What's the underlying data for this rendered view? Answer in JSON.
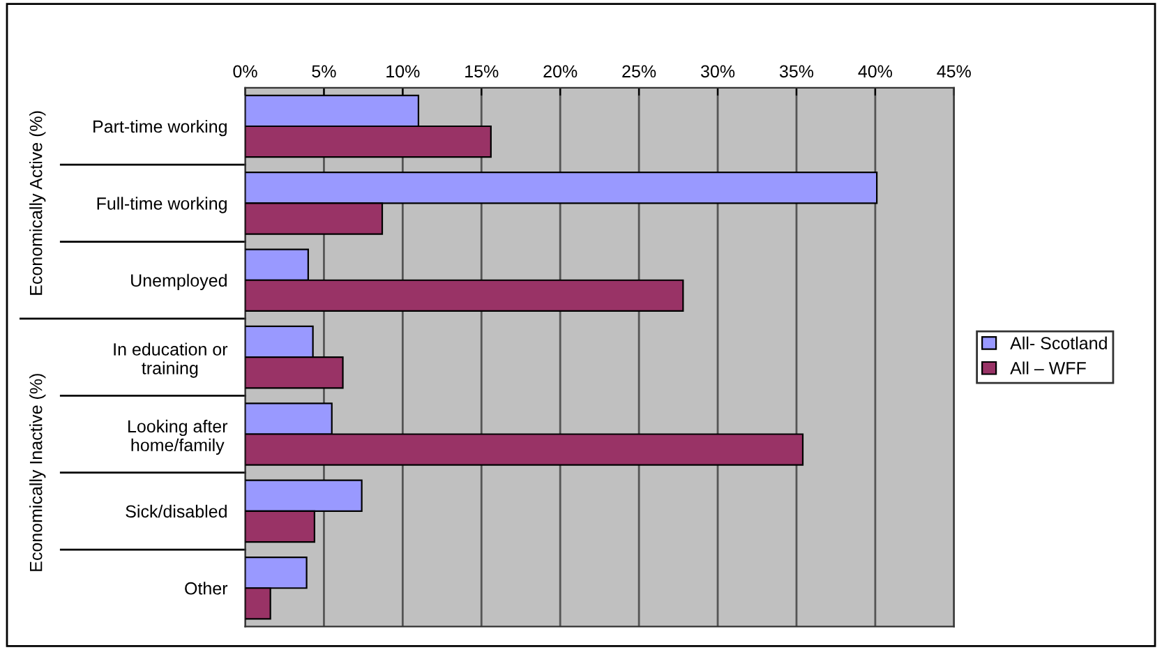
{
  "chart_data": {
    "type": "bar",
    "orientation": "horizontal",
    "categories": [
      "Part-time working",
      "Full-time working",
      "Unemployed",
      "In education or\ntraining",
      "Looking after\nhome/family",
      "Sick/disabled",
      "Other"
    ],
    "series": [
      {
        "name": "All- Scotland",
        "color": "#9999ff",
        "values": [
          11.0,
          40.1,
          4.0,
          4.3,
          5.5,
          7.4,
          3.9
        ]
      },
      {
        "name": "All – WFF",
        "color": "#993366",
        "values": [
          15.6,
          8.7,
          27.8,
          6.2,
          35.4,
          4.4,
          1.6
        ]
      }
    ],
    "xlim": [
      0,
      45
    ],
    "xticks": [
      {
        "value": 0,
        "label": "0%"
      },
      {
        "value": 5,
        "label": "5%"
      },
      {
        "value": 10,
        "label": "10%"
      },
      {
        "value": 15,
        "label": "15%"
      },
      {
        "value": 20,
        "label": "20%"
      },
      {
        "value": 25,
        "label": "25%"
      },
      {
        "value": 30,
        "label": "30%"
      },
      {
        "value": 35,
        "label": "35%"
      },
      {
        "value": 40,
        "label": "40%"
      },
      {
        "value": 45,
        "label": "45%"
      }
    ],
    "annotations": [
      "Economically Active (%)",
      "Economically Inactive (%)"
    ],
    "grid": "x",
    "legend": "right"
  }
}
